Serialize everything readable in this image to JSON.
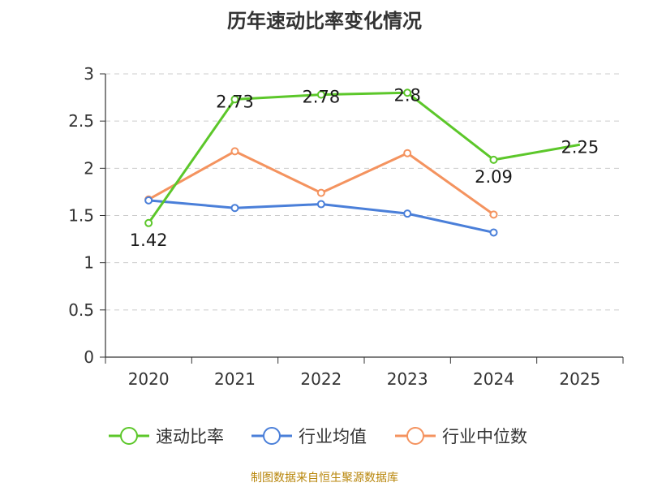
{
  "chart_data": {
    "type": "line",
    "title": "历年速动比率变化情况",
    "categories": [
      "2020",
      "2021",
      "2022",
      "2023",
      "2024",
      "2025"
    ],
    "ylim": [
      0,
      3
    ],
    "yticks": [
      "0",
      "0.5",
      "1",
      "1.5",
      "2",
      "2.5",
      "3"
    ],
    "grid": true,
    "legend_position": "bottom",
    "series": [
      {
        "name": "速动比率",
        "color": "#5cc72a",
        "show_labels": true,
        "values": [
          1.42,
          2.73,
          2.78,
          2.8,
          2.09,
          2.25
        ],
        "labels": [
          "1.42",
          "2.73",
          "2.78",
          "2.8",
          "2.09",
          "2.25"
        ],
        "markers": [
          true,
          true,
          true,
          true,
          true,
          false
        ]
      },
      {
        "name": "行业均值",
        "color": "#4a7fd9",
        "show_labels": false,
        "values": [
          1.66,
          1.58,
          1.62,
          1.52,
          1.32,
          null
        ]
      },
      {
        "name": "行业中位数",
        "color": "#f4935f",
        "show_labels": false,
        "values": [
          1.67,
          2.18,
          1.74,
          2.16,
          1.51,
          null
        ]
      }
    ]
  },
  "source_note": "制图数据来自恒生聚源数据库"
}
